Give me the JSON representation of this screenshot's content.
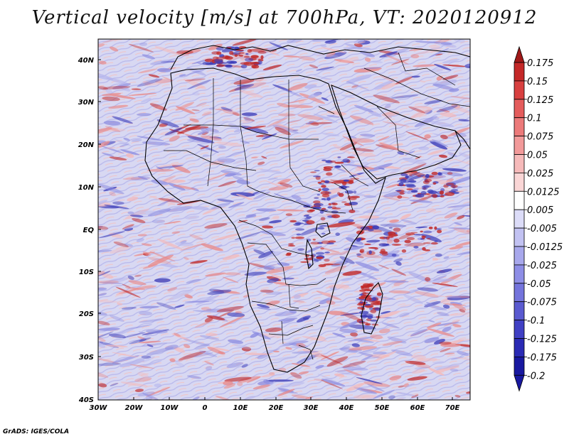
{
  "title": "Vertical velocity [m/s] at 700hPa, VT: 2020120912",
  "credit": "GrADS: IGES/COLA",
  "map": {
    "lon_range": [
      -30,
      75
    ],
    "lat_range": [
      -40,
      45
    ],
    "lat_ticks": [
      "40N",
      "30N",
      "20N",
      "10N",
      "EQ",
      "10S",
      "20S",
      "30S",
      "40S"
    ],
    "lon_ticks": [
      "30W",
      "20W",
      "10W",
      "0",
      "10E",
      "20E",
      "30E",
      "40E",
      "50E",
      "60E",
      "70E"
    ],
    "field_colors": {
      "background": "#d8d8f2",
      "descent": "#8c8ce0",
      "ascent": "#e88a8a",
      "strong_ascent": "#c02828",
      "strong_descent": "#3c3cb8",
      "border": "#000000"
    }
  },
  "colorbar": {
    "levels": [
      {
        "label": "0.175",
        "color": "#a01818"
      },
      {
        "label": "0.15",
        "color": "#c42828"
      },
      {
        "label": "0.125",
        "color": "#d84040"
      },
      {
        "label": "0.1",
        "color": "#e45c5c"
      },
      {
        "label": "0.075",
        "color": "#ec7a7a"
      },
      {
        "label": "0.05",
        "color": "#f29a9a"
      },
      {
        "label": "0.025",
        "color": "#f6baba"
      },
      {
        "label": "0.0125",
        "color": "#fad6d6"
      },
      {
        "label": "0.005",
        "color": "#ffffff"
      },
      {
        "label": "-0.005",
        "color": "#dcdcf8"
      },
      {
        "label": "-0.0125",
        "color": "#c2c2f2"
      },
      {
        "label": "-0.025",
        "color": "#a8a8ec"
      },
      {
        "label": "-0.05",
        "color": "#8e8ee6"
      },
      {
        "label": "-0.075",
        "color": "#7474dc"
      },
      {
        "label": "-0.1",
        "color": "#5a5ad0"
      },
      {
        "label": "-0.125",
        "color": "#4040c4"
      },
      {
        "label": "-0.175",
        "color": "#2a2ab4"
      },
      {
        "label": "-0.2",
        "color": "#1818a0"
      }
    ]
  }
}
